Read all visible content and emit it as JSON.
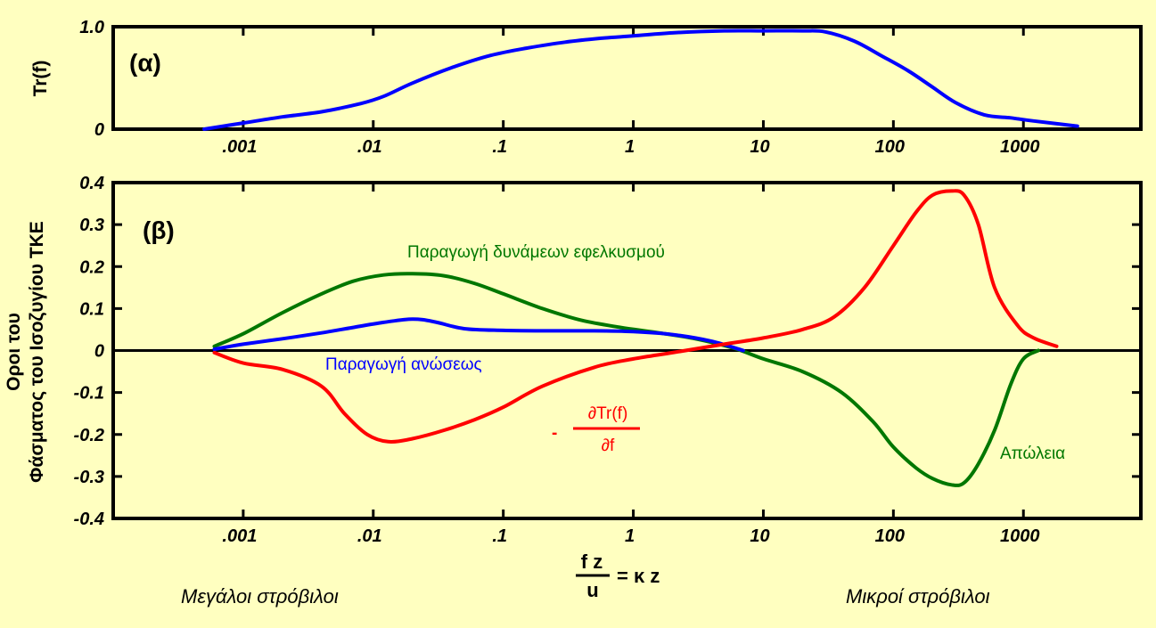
{
  "chart_data": [
    {
      "type": "line",
      "panel_label": "(α)",
      "ylabel": "Tr(f)",
      "xscale": "log",
      "xlim": [
        0.0001,
        8000
      ],
      "ylim": [
        0,
        1
      ],
      "yticks": [
        {
          "v": 0,
          "label": "0"
        },
        {
          "v": 1,
          "label": "1.0"
        }
      ],
      "xticks": [
        {
          "v": 0.001,
          "label": ".001"
        },
        {
          "v": 0.01,
          "label": ".01"
        },
        {
          "v": 0.1,
          "label": ".1"
        },
        {
          "v": 1,
          "label": "1"
        },
        {
          "v": 10,
          "label": "10"
        },
        {
          "v": 100,
          "label": "100"
        },
        {
          "v": 1000,
          "label": "1000"
        }
      ],
      "series": [
        {
          "color": "#0000ff",
          "x": [
            0.0005,
            0.001,
            0.002,
            0.004,
            0.008,
            0.012,
            0.02,
            0.04,
            0.08,
            0.15,
            0.3,
            0.6,
            1,
            2,
            5,
            10,
            20,
            30,
            50,
            80,
            130,
            200,
            300,
            500,
            800,
            1200,
            2600
          ],
          "y": [
            0.0,
            0.06,
            0.12,
            0.17,
            0.25,
            0.32,
            0.45,
            0.6,
            0.72,
            0.79,
            0.85,
            0.89,
            0.91,
            0.94,
            0.96,
            0.96,
            0.96,
            0.95,
            0.86,
            0.72,
            0.57,
            0.41,
            0.26,
            0.14,
            0.11,
            0.08,
            0.03
          ]
        }
      ]
    },
    {
      "type": "line",
      "panel_label": "(β)",
      "ylabel": [
        "Οροι του",
        "Φάσματος του Ισοζυγίου ΤΚΕ"
      ],
      "xscale": "log",
      "xlim": [
        0.0001,
        8000
      ],
      "ylim": [
        -0.4,
        0.4
      ],
      "yticks": [
        {
          "v": 0.4,
          "label": "0.4"
        },
        {
          "v": 0.3,
          "label": "0.3"
        },
        {
          "v": 0.2,
          "label": "0.2"
        },
        {
          "v": 0.1,
          "label": "0.1"
        },
        {
          "v": 0,
          "label": "0"
        },
        {
          "v": -0.1,
          "label": "-0.1"
        },
        {
          "v": -0.2,
          "label": "-0.2"
        },
        {
          "v": -0.3,
          "label": "-0.3"
        },
        {
          "v": -0.4,
          "label": "-0.4"
        }
      ],
      "xticks": [
        {
          "v": 0.001,
          "label": ".001"
        },
        {
          "v": 0.01,
          "label": ".01"
        },
        {
          "v": 0.1,
          "label": ".1"
        },
        {
          "v": 1,
          "label": "1"
        },
        {
          "v": 10,
          "label": "10"
        },
        {
          "v": 100,
          "label": "100"
        },
        {
          "v": 1000,
          "label": "1000"
        }
      ],
      "xlabel": {
        "numerator": "f z",
        "denominator": "u",
        "rhs": "= κ z"
      },
      "series": [
        {
          "name": "Παραγωγή δυνάμεων εφελκυσμού",
          "color": "#007700",
          "x": [
            0.0006,
            0.001,
            0.002,
            0.004,
            0.007,
            0.012,
            0.02,
            0.035,
            0.06,
            0.1,
            0.2,
            0.4,
            0.8,
            1.5,
            3,
            6,
            10,
            20,
            40,
            70,
            100,
            150,
            200,
            280,
            350,
            450,
            600,
            800,
            1000,
            1300
          ],
          "y": [
            0.01,
            0.04,
            0.09,
            0.135,
            0.165,
            0.18,
            0.183,
            0.178,
            0.16,
            0.135,
            0.1,
            0.072,
            0.055,
            0.043,
            0.028,
            0.005,
            -0.02,
            -0.05,
            -0.1,
            -0.17,
            -0.23,
            -0.28,
            -0.305,
            -0.32,
            -0.315,
            -0.27,
            -0.19,
            -0.08,
            -0.02,
            0.0
          ]
        },
        {
          "name": "Παραγωγή ανώσεως",
          "color": "#0000ff",
          "x": [
            0.0006,
            0.001,
            0.002,
            0.004,
            0.007,
            0.012,
            0.02,
            0.03,
            0.05,
            0.1,
            0.2,
            0.5,
            1,
            2,
            4,
            7
          ],
          "y": [
            0.003,
            0.015,
            0.028,
            0.042,
            0.055,
            0.067,
            0.075,
            0.068,
            0.052,
            0.048,
            0.047,
            0.047,
            0.045,
            0.038,
            0.022,
            0.0
          ]
        },
        {
          "name": "- ∂Tr(f)/∂f",
          "color": "#ff0000",
          "x": [
            0.0006,
            0.001,
            0.002,
            0.004,
            0.006,
            0.009,
            0.013,
            0.02,
            0.035,
            0.06,
            0.1,
            0.2,
            0.5,
            1,
            2,
            5,
            10,
            20,
            35,
            60,
            100,
            150,
            200,
            280,
            350,
            450,
            600,
            900,
            1200,
            1800
          ],
          "y": [
            -0.005,
            -0.03,
            -0.045,
            -0.085,
            -0.15,
            -0.2,
            -0.217,
            -0.21,
            -0.19,
            -0.165,
            -0.135,
            -0.085,
            -0.04,
            -0.02,
            -0.005,
            0.015,
            0.03,
            0.05,
            0.08,
            0.15,
            0.25,
            0.33,
            0.37,
            0.38,
            0.37,
            0.3,
            0.15,
            0.06,
            0.03,
            0.01
          ]
        }
      ],
      "annotations": {
        "shear_label": "Παραγωγή δυνάμεων εφελκυσμού",
        "buoyancy_label": "Παραγωγή ανώσεως",
        "dissipation_label": "Απώλεια",
        "transfer_minus": "-",
        "transfer_numerator": "∂Tr(f)",
        "transfer_denominator": "∂f"
      }
    }
  ],
  "bottom_labels": {
    "left": "Μεγάλοι στρόβιλοι",
    "right": "Μικροί στρόβιλοι"
  },
  "colors": {
    "background": "#ffffc0",
    "shear": "#007700",
    "buoyancy": "#0000ff",
    "transfer": "#ff0000"
  }
}
